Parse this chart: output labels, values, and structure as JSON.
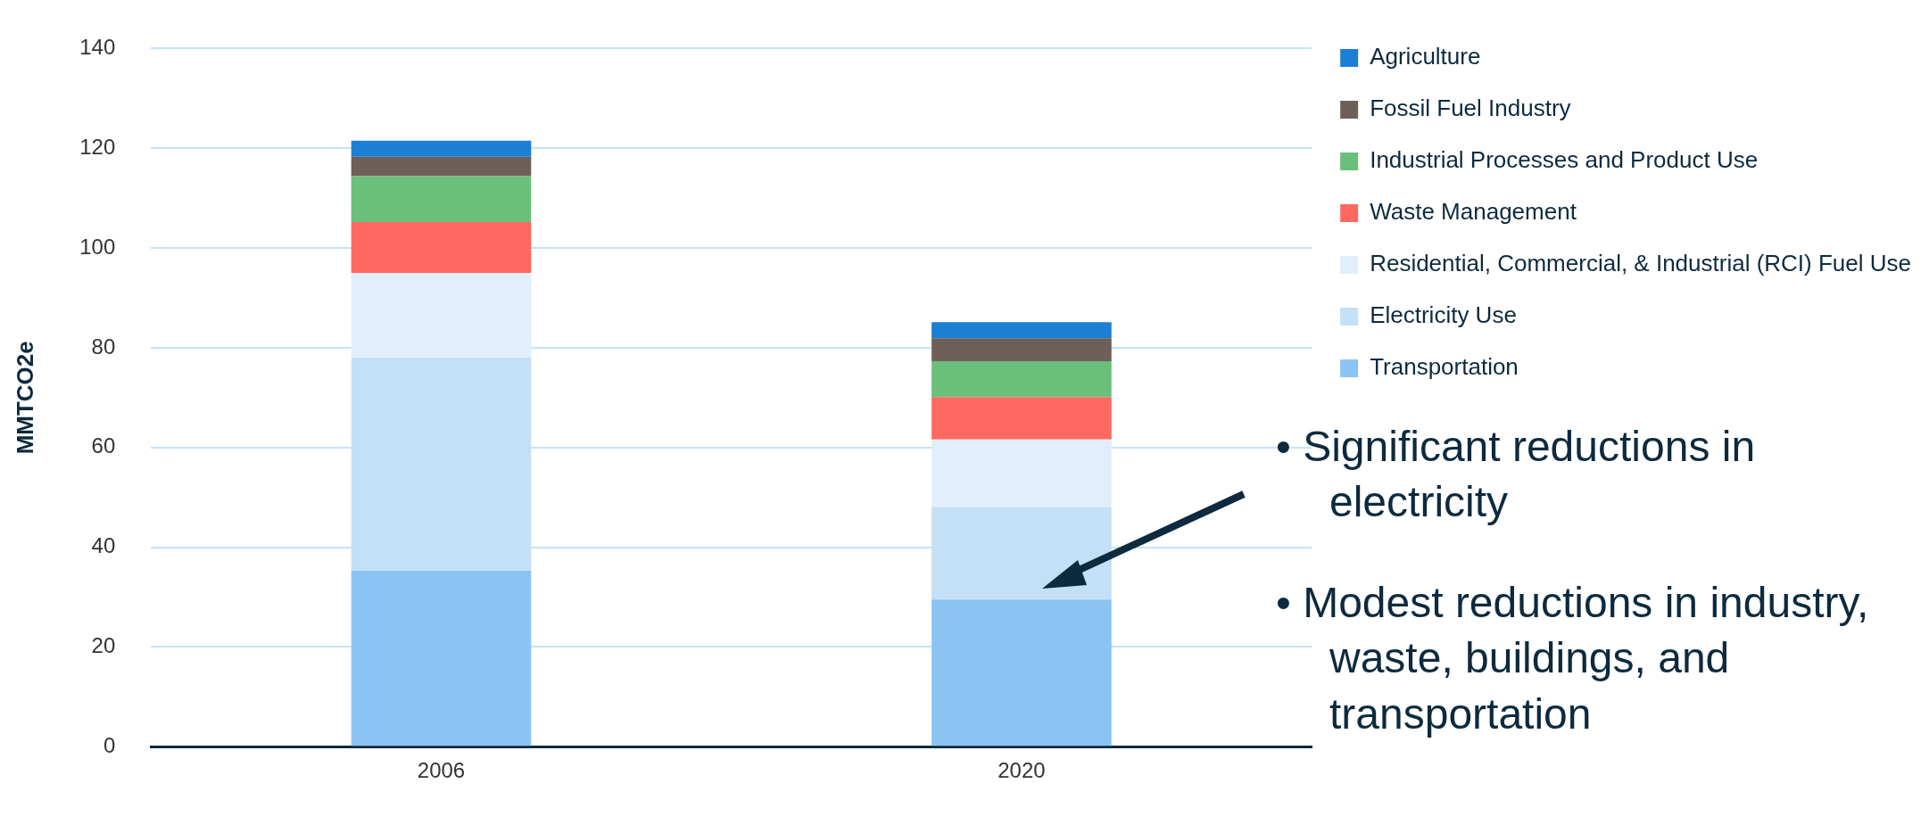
{
  "chart_data": {
    "type": "bar",
    "stacked": true,
    "ylabel": "MMTCO2e",
    "categories": [
      "2006",
      "2020"
    ],
    "series": [
      {
        "name": "Transportation",
        "color": "#8bc4f2",
        "values": [
          35.3,
          29.5
        ]
      },
      {
        "name": "Electricity Use",
        "color": "#c3e0f7",
        "values": [
          42.7,
          18.5
        ]
      },
      {
        "name": "Residential, Commercial, & Industrial (RCI) Fuel Use",
        "color": "#e1eefb",
        "values": [
          17,
          13.6
        ]
      },
      {
        "name": "Waste Management",
        "color": "#ff6961",
        "values": [
          10.2,
          8.5
        ]
      },
      {
        "name": "Industrial Processes and Product Use",
        "color": "#6abf7b",
        "values": [
          9.2,
          7.2
        ]
      },
      {
        "name": "Fossil Fuel Industry",
        "color": "#6e5f58",
        "values": [
          3.9,
          4.6
        ]
      },
      {
        "name": "Agriculture",
        "color": "#1b7fd4",
        "values": [
          3.2,
          3.2
        ]
      }
    ],
    "ylim": [
      0,
      140
    ],
    "yticks": [
      0,
      20,
      40,
      60,
      80,
      100,
      120,
      140
    ],
    "grid": "y",
    "legend": "top right",
    "annotations": [
      "• Significant reductions in electricity",
      "• Modest reductions in industry, waste, buildings, and transportation"
    ]
  }
}
